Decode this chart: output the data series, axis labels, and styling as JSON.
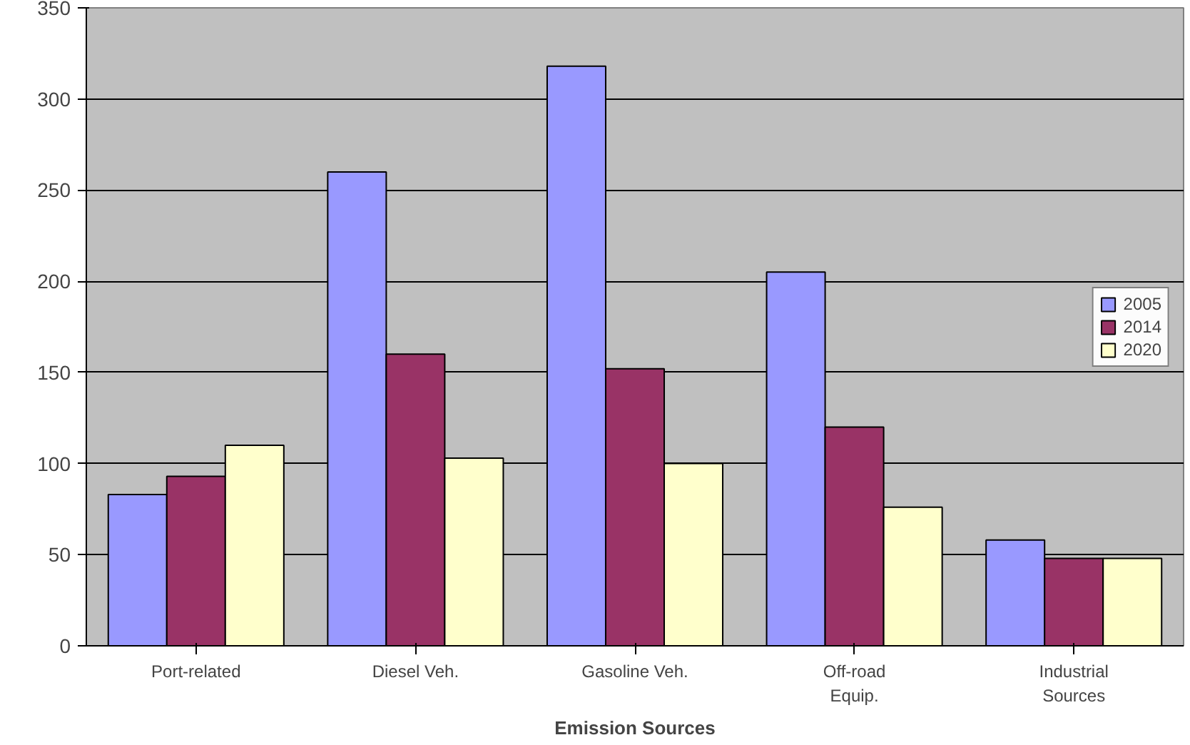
{
  "chart_data": {
    "type": "bar",
    "xlabel": "Emission Sources",
    "categories": [
      "Port-related",
      "Diesel Veh.",
      "Gasoline Veh.",
      "Off-road\nEquip.",
      "Industrial\nSources"
    ],
    "series": [
      {
        "name": "2005",
        "color": "#9999ff",
        "values": [
          83,
          260,
          318,
          205,
          58
        ]
      },
      {
        "name": "2014",
        "color": "#993366",
        "values": [
          93,
          160,
          152,
          120,
          48
        ]
      },
      {
        "name": "2020",
        "color": "#ffffcc",
        "values": [
          110,
          103,
          100,
          76,
          48
        ]
      }
    ],
    "ylim": [
      0,
      350
    ],
    "yticks": [
      0,
      50,
      100,
      150,
      200,
      250,
      300,
      350
    ],
    "grid": "y",
    "legend": "right"
  }
}
